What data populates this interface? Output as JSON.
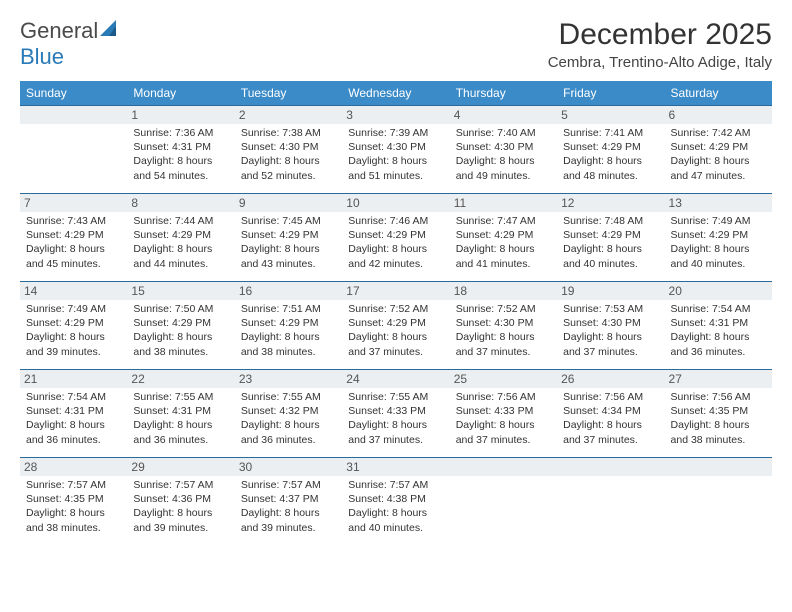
{
  "logo": {
    "text_general": "General",
    "text_blue": "Blue"
  },
  "header": {
    "month_title": "December 2025",
    "location": "Cembra, Trentino-Alto Adige, Italy"
  },
  "style": {
    "header_bg": "#3b8bc8",
    "header_text": "#ffffff",
    "row_border": "#2a6a9a",
    "daynum_bg": "#eceff1",
    "body_font_size": 10.5,
    "title_font_size": 30
  },
  "weekdays": [
    "Sunday",
    "Monday",
    "Tuesday",
    "Wednesday",
    "Thursday",
    "Friday",
    "Saturday"
  ],
  "weeks": [
    [
      null,
      {
        "n": "1",
        "sr": "7:36 AM",
        "ss": "4:31 PM",
        "dl": "8 hours and 54 minutes."
      },
      {
        "n": "2",
        "sr": "7:38 AM",
        "ss": "4:30 PM",
        "dl": "8 hours and 52 minutes."
      },
      {
        "n": "3",
        "sr": "7:39 AM",
        "ss": "4:30 PM",
        "dl": "8 hours and 51 minutes."
      },
      {
        "n": "4",
        "sr": "7:40 AM",
        "ss": "4:30 PM",
        "dl": "8 hours and 49 minutes."
      },
      {
        "n": "5",
        "sr": "7:41 AM",
        "ss": "4:29 PM",
        "dl": "8 hours and 48 minutes."
      },
      {
        "n": "6",
        "sr": "7:42 AM",
        "ss": "4:29 PM",
        "dl": "8 hours and 47 minutes."
      }
    ],
    [
      {
        "n": "7",
        "sr": "7:43 AM",
        "ss": "4:29 PM",
        "dl": "8 hours and 45 minutes."
      },
      {
        "n": "8",
        "sr": "7:44 AM",
        "ss": "4:29 PM",
        "dl": "8 hours and 44 minutes."
      },
      {
        "n": "9",
        "sr": "7:45 AM",
        "ss": "4:29 PM",
        "dl": "8 hours and 43 minutes."
      },
      {
        "n": "10",
        "sr": "7:46 AM",
        "ss": "4:29 PM",
        "dl": "8 hours and 42 minutes."
      },
      {
        "n": "11",
        "sr": "7:47 AM",
        "ss": "4:29 PM",
        "dl": "8 hours and 41 minutes."
      },
      {
        "n": "12",
        "sr": "7:48 AM",
        "ss": "4:29 PM",
        "dl": "8 hours and 40 minutes."
      },
      {
        "n": "13",
        "sr": "7:49 AM",
        "ss": "4:29 PM",
        "dl": "8 hours and 40 minutes."
      }
    ],
    [
      {
        "n": "14",
        "sr": "7:49 AM",
        "ss": "4:29 PM",
        "dl": "8 hours and 39 minutes."
      },
      {
        "n": "15",
        "sr": "7:50 AM",
        "ss": "4:29 PM",
        "dl": "8 hours and 38 minutes."
      },
      {
        "n": "16",
        "sr": "7:51 AM",
        "ss": "4:29 PM",
        "dl": "8 hours and 38 minutes."
      },
      {
        "n": "17",
        "sr": "7:52 AM",
        "ss": "4:29 PM",
        "dl": "8 hours and 37 minutes."
      },
      {
        "n": "18",
        "sr": "7:52 AM",
        "ss": "4:30 PM",
        "dl": "8 hours and 37 minutes."
      },
      {
        "n": "19",
        "sr": "7:53 AM",
        "ss": "4:30 PM",
        "dl": "8 hours and 37 minutes."
      },
      {
        "n": "20",
        "sr": "7:54 AM",
        "ss": "4:31 PM",
        "dl": "8 hours and 36 minutes."
      }
    ],
    [
      {
        "n": "21",
        "sr": "7:54 AM",
        "ss": "4:31 PM",
        "dl": "8 hours and 36 minutes."
      },
      {
        "n": "22",
        "sr": "7:55 AM",
        "ss": "4:31 PM",
        "dl": "8 hours and 36 minutes."
      },
      {
        "n": "23",
        "sr": "7:55 AM",
        "ss": "4:32 PM",
        "dl": "8 hours and 36 minutes."
      },
      {
        "n": "24",
        "sr": "7:55 AM",
        "ss": "4:33 PM",
        "dl": "8 hours and 37 minutes."
      },
      {
        "n": "25",
        "sr": "7:56 AM",
        "ss": "4:33 PM",
        "dl": "8 hours and 37 minutes."
      },
      {
        "n": "26",
        "sr": "7:56 AM",
        "ss": "4:34 PM",
        "dl": "8 hours and 37 minutes."
      },
      {
        "n": "27",
        "sr": "7:56 AM",
        "ss": "4:35 PM",
        "dl": "8 hours and 38 minutes."
      }
    ],
    [
      {
        "n": "28",
        "sr": "7:57 AM",
        "ss": "4:35 PM",
        "dl": "8 hours and 38 minutes."
      },
      {
        "n": "29",
        "sr": "7:57 AM",
        "ss": "4:36 PM",
        "dl": "8 hours and 39 minutes."
      },
      {
        "n": "30",
        "sr": "7:57 AM",
        "ss": "4:37 PM",
        "dl": "8 hours and 39 minutes."
      },
      {
        "n": "31",
        "sr": "7:57 AM",
        "ss": "4:38 PM",
        "dl": "8 hours and 40 minutes."
      },
      null,
      null,
      null
    ]
  ]
}
